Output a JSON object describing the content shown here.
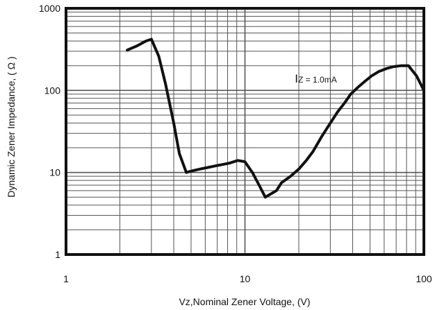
{
  "chart_data": {
    "type": "line",
    "xlabel": "Vz,Nominal Zener Voltage, (V)",
    "ylabel": "Dynamic Zener Impedance, ( Ω )",
    "xscale": "log",
    "yscale": "log",
    "xlim": [
      1,
      100
    ],
    "ylim": [
      1,
      1000
    ],
    "x_ticks": [
      {
        "value": 1,
        "label": "1"
      },
      {
        "value": 10,
        "label": "10"
      },
      {
        "value": 100,
        "label": "100"
      }
    ],
    "y_ticks": [
      {
        "value": 1,
        "label": "1"
      },
      {
        "value": 10,
        "label": "10"
      },
      {
        "value": 100,
        "label": "100"
      },
      {
        "value": 1000,
        "label": "1000"
      }
    ],
    "grid": true,
    "legend": "none",
    "annotation": {
      "main": "I",
      "subscript": "Z",
      "rest": " = 1.0mA",
      "x": 19,
      "y": 125
    },
    "series": [
      {
        "x": [
          2.2,
          2.5,
          2.8,
          3.0,
          3.3,
          3.6,
          4.0,
          4.3,
          4.7,
          5.1,
          5.6,
          6.2,
          6.8,
          7.5,
          8.2,
          9.1,
          10,
          11,
          12,
          13,
          15,
          16,
          18,
          20,
          22,
          24,
          27,
          30,
          33,
          36,
          39,
          43,
          47,
          51,
          56,
          62,
          68,
          75,
          82,
          91,
          100
        ],
        "y": [
          310,
          350,
          400,
          420,
          260,
          120,
          40,
          17,
          10,
          10.5,
          11,
          11.5,
          12,
          12.5,
          13,
          14,
          13.5,
          10,
          7,
          5,
          6,
          7.5,
          9,
          11,
          14,
          18,
          28,
          40,
          55,
          70,
          90,
          110,
          130,
          150,
          170,
          185,
          195,
          200,
          200,
          150,
          100
        ]
      }
    ],
    "colors": {
      "line": "#111111",
      "grid": "#555555",
      "frame": "#111111"
    }
  }
}
